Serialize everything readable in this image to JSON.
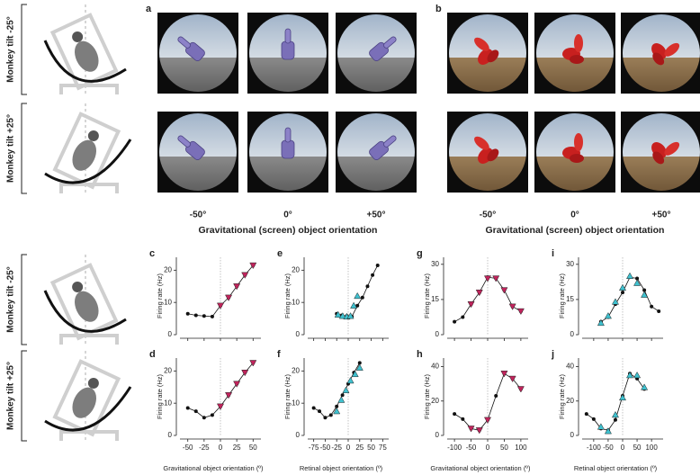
{
  "figure": {
    "top_panels": [
      {
        "label": "a",
        "orientations": [
          "-50°",
          "0°",
          "+50°"
        ],
        "xlabel": "Gravitational (screen) object orientation"
      },
      {
        "label": "b",
        "orientations": [
          "-50°",
          "0°",
          "+50°"
        ],
        "xlabel": "Gravitational (screen) object orientation"
      }
    ],
    "monkey_labels": [
      "Monkey tilt -25°",
      "Monkey tilt +25°",
      "Monkey tilt -25°",
      "Monkey tilt +25°"
    ]
  },
  "chart_data": [
    {
      "type": "line",
      "panel": "c",
      "ylabel": "Firing rate (Hz)",
      "xlim": [
        -62,
        62
      ],
      "ylim": [
        0,
        24
      ],
      "xticks": [
        -50,
        -25,
        0,
        25,
        50
      ],
      "yticks": [
        0,
        10,
        20
      ],
      "show_xtick_labels": false,
      "series": [
        {
          "color": "#111111",
          "marker": "dot",
          "line": true,
          "x": [
            -50,
            -37.5,
            -25,
            -12.5,
            0,
            12.5,
            25,
            37.5,
            50
          ],
          "values": [
            6.5,
            6,
            5.8,
            5.6,
            9,
            11.5,
            15,
            18.5,
            21.5
          ]
        },
        {
          "color": "#c0245c",
          "marker": "triangle-down",
          "line": false,
          "x": [
            0,
            12.5,
            25,
            37.5,
            50
          ],
          "values": [
            9,
            11.5,
            15,
            18.5,
            21.5
          ]
        }
      ]
    },
    {
      "type": "line",
      "panel": "d",
      "ylabel": "Firing rate (Hz)",
      "xlabel": "Gravitational object orientation (º)",
      "xlim": [
        -62,
        62
      ],
      "ylim": [
        0,
        24
      ],
      "xticks": [
        -50,
        -25,
        0,
        25,
        50
      ],
      "yticks": [
        0,
        10,
        20
      ],
      "show_xtick_labels": true,
      "series": [
        {
          "color": "#111111",
          "marker": "dot",
          "line": true,
          "x": [
            -50,
            -37.5,
            -25,
            -12.5,
            0,
            12.5,
            25,
            37.5,
            50
          ],
          "values": [
            8.5,
            7.5,
            5.5,
            6.3,
            9,
            12.5,
            16,
            19.5,
            22.5
          ]
        },
        {
          "color": "#c0245c",
          "marker": "triangle-down",
          "line": false,
          "x": [
            0,
            12.5,
            25,
            37.5,
            50
          ],
          "values": [
            9,
            12.5,
            16,
            19.5,
            22.5
          ]
        }
      ]
    },
    {
      "type": "line",
      "panel": "e",
      "ylabel": "Firing rate (Hz)",
      "xlim": [
        -88,
        88
      ],
      "ylim": [
        0,
        24
      ],
      "xticks": [
        -75,
        -50,
        -25,
        0,
        25,
        50,
        75
      ],
      "yticks": [
        0,
        10,
        20
      ],
      "show_xtick_labels": false,
      "series": [
        {
          "color": "#111111",
          "marker": "dot",
          "line": true,
          "x": [
            -25,
            -14,
            -3,
            8,
            20,
            31,
            42,
            53,
            64
          ],
          "values": [
            6.5,
            6,
            5.8,
            5.6,
            9,
            11.5,
            15,
            18.5,
            21.5
          ]
        },
        {
          "color": "#3fc1cf",
          "marker": "triangle-up",
          "line": false,
          "x": [
            -22,
            -12,
            -3,
            5,
            12,
            20
          ],
          "values": [
            6.2,
            5.8,
            5.6,
            5.8,
            9,
            12
          ]
        }
      ]
    },
    {
      "type": "line",
      "panel": "f",
      "ylabel": "Firing rate (Hz)",
      "xlabel": "Retinal object orientation (º)",
      "xlim": [
        -88,
        88
      ],
      "ylim": [
        0,
        24
      ],
      "xticks": [
        -75,
        -50,
        -25,
        0,
        25,
        50,
        75
      ],
      "yticks": [
        0,
        10,
        20
      ],
      "show_xtick_labels": true,
      "series": [
        {
          "color": "#111111",
          "marker": "dot",
          "line": true,
          "x": [
            -75,
            -62.5,
            -50,
            -37.5,
            -25,
            -12.5,
            0,
            12.5,
            25
          ],
          "values": [
            8.5,
            7.5,
            5.5,
            6.3,
            9,
            12.5,
            16,
            19.5,
            22.5
          ]
        },
        {
          "color": "#3fc1cf",
          "marker": "triangle-up",
          "line": false,
          "x": [
            -25,
            -15,
            -5,
            5,
            15,
            25
          ],
          "values": [
            7.5,
            11,
            14,
            17,
            19,
            21
          ]
        }
      ]
    },
    {
      "type": "line",
      "panel": "g",
      "ylabel": "Firing rate (Hz)",
      "xlim": [
        -122,
        122
      ],
      "ylim": [
        0,
        33
      ],
      "xticks": [
        -100,
        -50,
        0,
        50,
        100
      ],
      "yticks": [
        0,
        15,
        30
      ],
      "show_xtick_labels": false,
      "series": [
        {
          "color": "#111111",
          "marker": "dot",
          "line": true,
          "x": [
            -100,
            -75,
            -50,
            -25,
            0,
            25,
            50,
            75,
            100
          ],
          "values": [
            5.5,
            7.5,
            13,
            18,
            24.5,
            24,
            19,
            12,
            10
          ]
        },
        {
          "color": "#c0245c",
          "marker": "triangle-down",
          "line": false,
          "x": [
            -50,
            -25,
            0,
            25,
            50,
            75,
            100
          ],
          "values": [
            13,
            18,
            24,
            24,
            19,
            12,
            10
          ]
        }
      ]
    },
    {
      "type": "line",
      "panel": "h",
      "ylabel": "Firing rate (Hz)",
      "xlabel": "Gravitational object orientation (º)",
      "xlim": [
        -122,
        122
      ],
      "ylim": [
        0,
        45
      ],
      "xticks": [
        -100,
        -50,
        0,
        50,
        100
      ],
      "yticks": [
        0,
        20,
        40
      ],
      "show_xtick_labels": true,
      "series": [
        {
          "color": "#111111",
          "marker": "dot",
          "line": true,
          "x": [
            -100,
            -75,
            -50,
            -25,
            0,
            25,
            50,
            75,
            100
          ],
          "values": [
            12.5,
            9.5,
            4,
            3,
            9,
            23,
            36,
            33,
            27
          ]
        },
        {
          "color": "#c0245c",
          "marker": "triangle-down",
          "line": false,
          "x": [
            -50,
            -25,
            0,
            50,
            75,
            100
          ],
          "values": [
            4,
            3,
            9,
            36,
            33,
            27
          ]
        }
      ]
    },
    {
      "type": "line",
      "panel": "i",
      "ylabel": "Firing rate (Hz)",
      "xlim": [
        -140,
        140
      ],
      "ylim": [
        0,
        33
      ],
      "xticks": [
        -100,
        -50,
        0,
        50,
        100
      ],
      "yticks": [
        0,
        15,
        30
      ],
      "show_xtick_labels": false,
      "series": [
        {
          "color": "#111111",
          "marker": "dot",
          "line": true,
          "x": [
            -75,
            -50,
            -25,
            0,
            25,
            50,
            75,
            100,
            125
          ],
          "values": [
            5.5,
            7.5,
            13,
            18,
            24.5,
            24,
            19,
            12,
            10
          ]
        },
        {
          "color": "#3fc1cf",
          "marker": "triangle-up",
          "line": false,
          "x": [
            -75,
            -50,
            -25,
            0,
            25,
            50,
            75
          ],
          "values": [
            5,
            8,
            14,
            20,
            25,
            22,
            17
          ]
        }
      ]
    },
    {
      "type": "line",
      "panel": "j",
      "ylabel": "Firing rate (Hz)",
      "xlabel": "Retinal object orientation (º)",
      "xlim": [
        -140,
        140
      ],
      "ylim": [
        0,
        45
      ],
      "xticks": [
        -100,
        -50,
        0,
        50,
        100
      ],
      "yticks": [
        0,
        20,
        40
      ],
      "show_xtick_labels": true,
      "series": [
        {
          "color": "#111111",
          "marker": "dot",
          "line": true,
          "x": [
            -125,
            -100,
            -75,
            -50,
            -25,
            0,
            25,
            50,
            75
          ],
          "values": [
            12.5,
            9.5,
            4,
            3,
            9,
            23,
            36,
            33,
            27
          ]
        },
        {
          "color": "#3fc1cf",
          "marker": "triangle-up",
          "line": false,
          "x": [
            -75,
            -50,
            -25,
            0,
            25,
            50,
            75
          ],
          "values": [
            5,
            2.5,
            12,
            22,
            35,
            35,
            28
          ]
        }
      ]
    }
  ]
}
